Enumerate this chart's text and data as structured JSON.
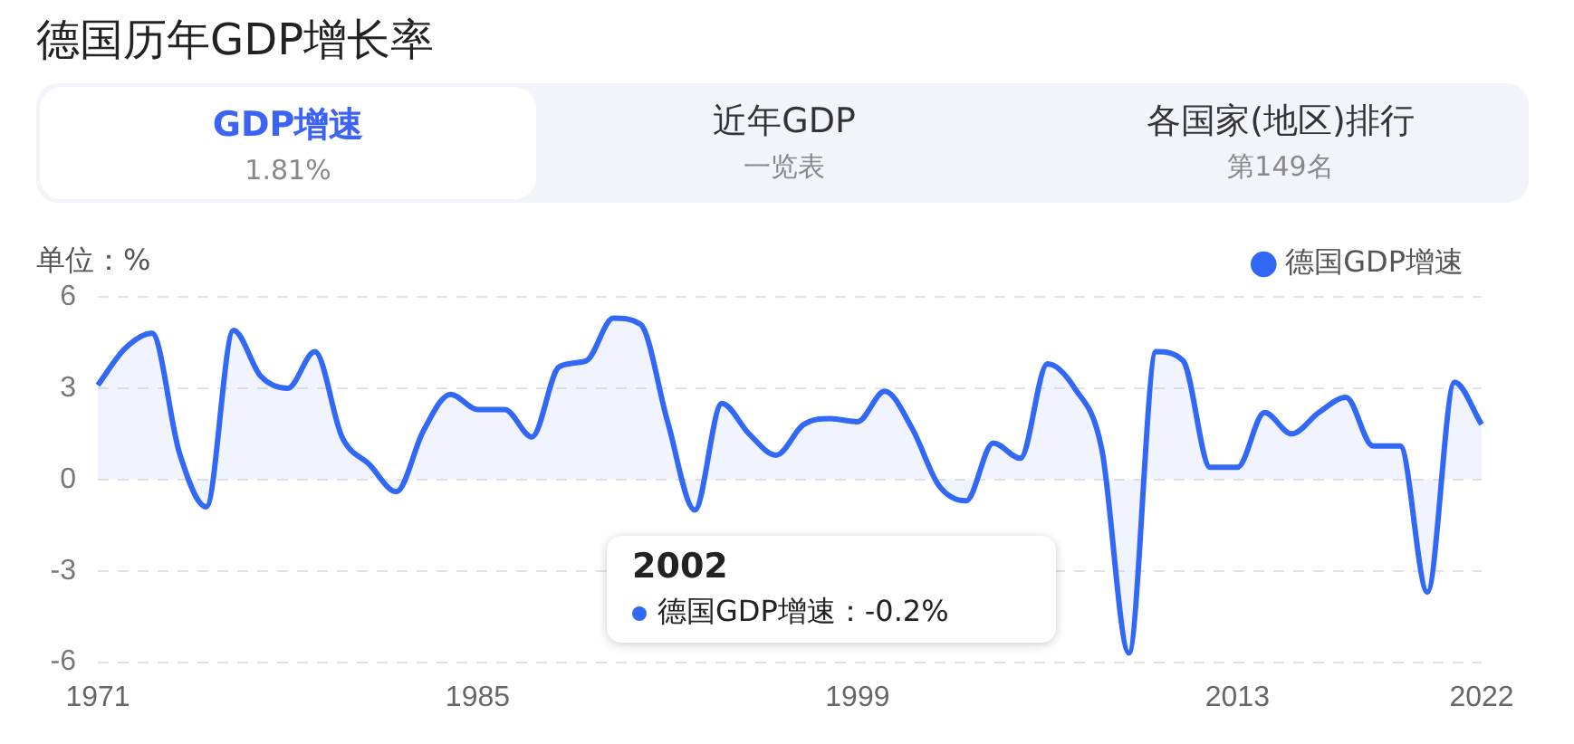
{
  "chart_data": {
    "type": "area",
    "title": "德国历年GDP增长率",
    "ylabel": "单位：%",
    "annotations": [
      "GDP增速",
      "1.81%",
      "近年GDP",
      "一览表",
      "各国家(地区)排行",
      "第149名",
      "2002",
      "德国GDP增速：-0.2%"
    ],
    "categories": [
      "1971",
      null,
      null,
      null,
      null,
      null,
      null,
      null,
      null,
      null,
      null,
      null,
      null,
      null,
      "1985",
      null,
      null,
      null,
      null,
      null,
      null,
      null,
      null,
      null,
      null,
      null,
      null,
      null,
      "1999",
      null,
      null,
      null,
      null,
      null,
      null,
      null,
      null,
      null,
      null,
      null,
      null,
      null,
      "2013",
      null,
      null,
      null,
      null,
      null,
      null,
      null,
      null,
      "2022"
    ],
    "series": [
      {
        "name": "德国GDP增速",
        "color": "#3268f6",
        "values": [
          3.1,
          4.3,
          4.8,
          0.9,
          -0.9,
          4.9,
          3.4,
          3.0,
          4.2,
          1.4,
          0.5,
          -0.4,
          1.6,
          2.8,
          2.3,
          2.3,
          1.4,
          3.7,
          3.9,
          5.3,
          5.1,
          1.9,
          -1.0,
          2.5,
          1.5,
          0.8,
          1.8,
          2.0,
          1.9,
          2.9,
          1.7,
          -0.2,
          -0.7,
          1.2,
          0.7,
          3.8,
          3.0,
          1.0,
          -5.7,
          4.2,
          3.9,
          0.4,
          0.4,
          2.2,
          1.5,
          2.2,
          2.7,
          1.1,
          1.1,
          -3.7,
          3.2,
          1.81
        ]
      }
    ],
    "ylim": [
      -6,
      6
    ],
    "yticks": [
      -6,
      -3,
      0,
      3,
      6
    ],
    "grid": "y",
    "legend": "top right",
    "marker": "none",
    "line_style": "solid"
  }
}
